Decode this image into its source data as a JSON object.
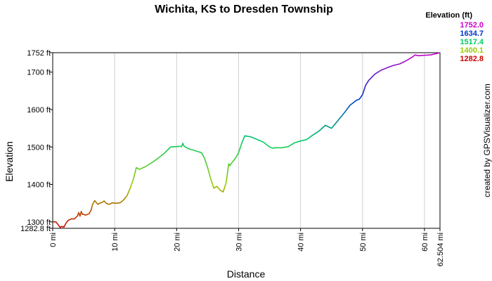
{
  "chart_data": {
    "type": "line",
    "title": "Wichita, KS to Dresden Township",
    "xlabel": "Distance",
    "ylabel": "Elevation",
    "credit": "created by GPSVisualizer.com",
    "xlim": [
      0,
      62.504
    ],
    "ylim": [
      1282.8,
      1752
    ],
    "x_ticks": [
      {
        "value": 0,
        "label": "0 mi"
      },
      {
        "value": 10,
        "label": "10 mi"
      },
      {
        "value": 20,
        "label": "20 mi"
      },
      {
        "value": 30,
        "label": "30 mi"
      },
      {
        "value": 40,
        "label": "40 mi"
      },
      {
        "value": 50,
        "label": "50 mi"
      },
      {
        "value": 60,
        "label": "60 mi"
      },
      {
        "value": 62.504,
        "label": "62.504 mi"
      }
    ],
    "y_ticks": [
      {
        "value": 1282.8,
        "label": "1282.8 ft"
      },
      {
        "value": 1300,
        "label": "1300 ft"
      },
      {
        "value": 1400,
        "label": "1400 ft"
      },
      {
        "value": 1500,
        "label": "1500 ft"
      },
      {
        "value": 1600,
        "label": "1600 ft"
      },
      {
        "value": 1700,
        "label": "1700 ft"
      },
      {
        "value": 1752,
        "label": "1752 ft"
      }
    ],
    "grid": "vertical",
    "legend": {
      "title": "Elevation (ft)",
      "placement": "top-right",
      "items": [
        {
          "label": "1752.0",
          "color": "#cc00cc"
        },
        {
          "label": "1634.7",
          "color": "#0033cc"
        },
        {
          "label": "1517.4",
          "color": "#00cc66"
        },
        {
          "label": "1400.1",
          "color": "#99cc00"
        },
        {
          "label": "1282.8",
          "color": "#cc0000"
        }
      ]
    },
    "series": [
      {
        "x": [
          0,
          0.5,
          1.0,
          1.2,
          1.5,
          1.8,
          2.2,
          2.5,
          3.0,
          3.5,
          4.0,
          4.2,
          4.4,
          4.6,
          4.8,
          5.0,
          5.3,
          5.6,
          5.9,
          6.2,
          6.4,
          6.6,
          6.8,
          7.0,
          7.3,
          7.6,
          8.0,
          8.3,
          8.6,
          9.0,
          9.3,
          9.6,
          10.0,
          10.5,
          11.0,
          11.5,
          12.0,
          12.5,
          13.0,
          13.5,
          14.0,
          15.0,
          16.0,
          17.0,
          18.0,
          19.0,
          20.0,
          20.5,
          20.8,
          21.0,
          21.2,
          22.0,
          23.0,
          24.0,
          24.5,
          25.0,
          25.5,
          26.0,
          26.5,
          27.0,
          27.5,
          27.8,
          28.0,
          28.2,
          28.4,
          28.6,
          29.0,
          29.5,
          30.0,
          30.5,
          31.0,
          32.0,
          33.0,
          34.0,
          35.0,
          35.5,
          36.0,
          37.0,
          38.0,
          39.0,
          40.0,
          41.0,
          42.0,
          43.0,
          44.0,
          45.0,
          46.0,
          47.0,
          48.0,
          48.5,
          49.0,
          49.5,
          50.0,
          50.5,
          51.0,
          52.0,
          53.0,
          54.0,
          55.0,
          56.0,
          57.0,
          58.0,
          58.5,
          59.0,
          60.0,
          61.0,
          62.0,
          62.504
        ],
        "y": [
          1300,
          1300,
          1290,
          1285,
          1288,
          1286,
          1298,
          1304,
          1308,
          1308,
          1316,
          1325,
          1315,
          1328,
          1320,
          1320,
          1318,
          1320,
          1322,
          1332,
          1345,
          1352,
          1357,
          1352,
          1347,
          1350,
          1352,
          1356,
          1350,
          1347,
          1348,
          1351,
          1350,
          1350,
          1352,
          1360,
          1370,
          1390,
          1413,
          1445,
          1440,
          1448,
          1458,
          1470,
          1483,
          1500,
          1501,
          1502,
          1501,
          1510,
          1502,
          1495,
          1490,
          1485,
          1470,
          1445,
          1415,
          1390,
          1395,
          1385,
          1380,
          1395,
          1405,
          1430,
          1455,
          1450,
          1460,
          1470,
          1485,
          1510,
          1530,
          1527,
          1520,
          1513,
          1500,
          1497,
          1498,
          1498,
          1501,
          1511,
          1516,
          1520,
          1532,
          1543,
          1558,
          1550,
          1570,
          1590,
          1612,
          1618,
          1625,
          1628,
          1640,
          1665,
          1678,
          1695,
          1705,
          1712,
          1718,
          1722,
          1730,
          1740,
          1746,
          1744,
          1745,
          1746,
          1750,
          1752
        ]
      }
    ]
  }
}
